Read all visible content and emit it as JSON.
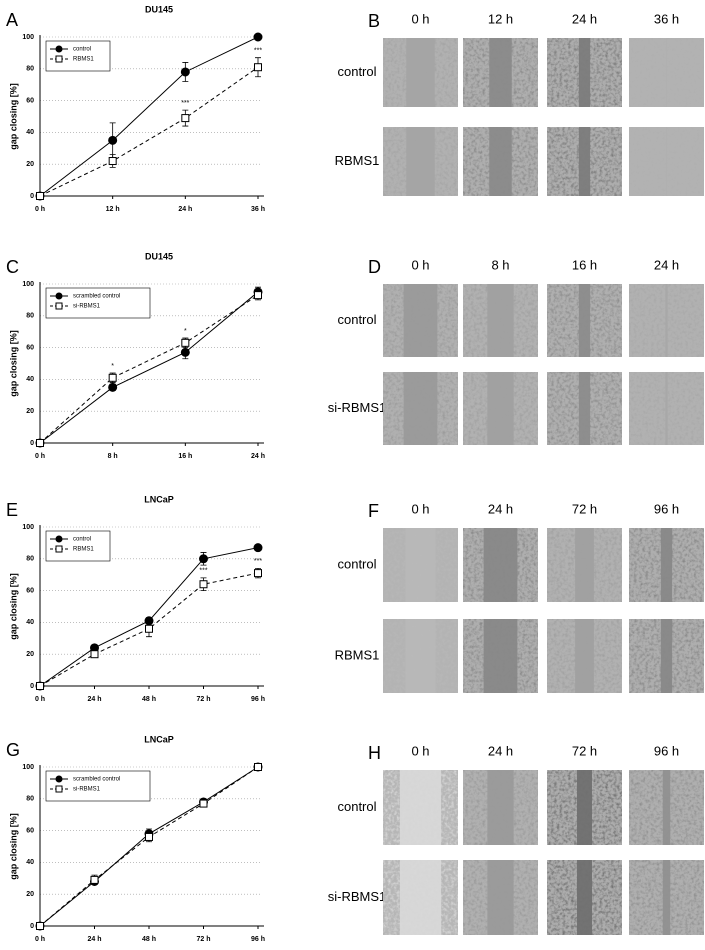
{
  "panel_letters": {
    "charts": [
      "A",
      "C",
      "E",
      "G"
    ],
    "images": [
      "B",
      "D",
      "F",
      "H"
    ]
  },
  "chart_data": [
    {
      "type": "line",
      "title": "DU145",
      "y_label": "gap closing [%]",
      "categories": [
        "0 h",
        "12 h",
        "24 h",
        "36 h"
      ],
      "ylim": [
        0,
        100
      ],
      "yticks": [
        0,
        20,
        40,
        60,
        80,
        100
      ],
      "grid": true,
      "legend": "upper left",
      "series": [
        {
          "name": "control",
          "color": "#000000",
          "marker": "circle-filled",
          "dashed": false,
          "values": [
            0,
            35,
            78,
            100
          ],
          "errors": [
            0,
            11,
            6,
            0
          ]
        },
        {
          "name": "RBMS1",
          "color": "#000000",
          "marker": "square-open",
          "dashed": true,
          "values": [
            0,
            22,
            49,
            81
          ],
          "errors": [
            0,
            4,
            5,
            6
          ],
          "significance": [
            null,
            null,
            "***",
            "***"
          ]
        }
      ]
    },
    {
      "type": "line",
      "title": "DU145",
      "y_label": "gap closing [%]",
      "categories": [
        "0 h",
        "8 h",
        "16 h",
        "24 h"
      ],
      "ylim": [
        0,
        100
      ],
      "yticks": [
        0,
        20,
        40,
        60,
        80,
        100
      ],
      "grid": true,
      "legend": "upper left",
      "series": [
        {
          "name": "scrambled control",
          "color": "#000000",
          "marker": "circle-filled",
          "dashed": false,
          "values": [
            0,
            35,
            57,
            95
          ],
          "errors": [
            0,
            2,
            4,
            3
          ]
        },
        {
          "name": "si-RBMS1",
          "color": "#000000",
          "marker": "square-open",
          "dashed": true,
          "values": [
            0,
            41,
            63,
            93
          ],
          "errors": [
            0,
            3,
            3,
            3
          ],
          "significance": [
            null,
            "*",
            "*",
            null
          ]
        }
      ]
    },
    {
      "type": "line",
      "title": "LNCaP",
      "y_label": "gap closing [%]",
      "categories": [
        "0 h",
        "24 h",
        "48 h",
        "72 h",
        "96 h"
      ],
      "ylim": [
        0,
        100
      ],
      "yticks": [
        0,
        20,
        40,
        60,
        80,
        100
      ],
      "grid": true,
      "legend": "upper left",
      "series": [
        {
          "name": "control",
          "color": "#000000",
          "marker": "circle-filled",
          "dashed": false,
          "values": [
            0,
            24,
            41,
            80,
            87
          ],
          "errors": [
            0,
            1,
            2,
            4,
            1
          ]
        },
        {
          "name": "RBMS1",
          "color": "#000000",
          "marker": "square-open",
          "dashed": true,
          "values": [
            0,
            20,
            36,
            64,
            71
          ],
          "errors": [
            0,
            1,
            5,
            4,
            3
          ],
          "significance": [
            null,
            null,
            null,
            "***",
            "***"
          ]
        }
      ]
    },
    {
      "type": "line",
      "title": "LNCaP",
      "y_label": "gap closing [%]",
      "categories": [
        "0 h",
        "24 h",
        "48 h",
        "72 h",
        "96 h"
      ],
      "ylim": [
        0,
        100
      ],
      "yticks": [
        0,
        20,
        40,
        60,
        80,
        100
      ],
      "grid": true,
      "legend": "upper left",
      "series": [
        {
          "name": "scrambled control",
          "color": "#000000",
          "marker": "circle-filled",
          "dashed": false,
          "values": [
            0,
            28,
            58,
            78,
            100
          ],
          "errors": [
            0,
            2,
            3,
            2,
            1
          ]
        },
        {
          "name": "si-RBMS1",
          "color": "#000000",
          "marker": "square-open",
          "dashed": true,
          "values": [
            0,
            29,
            56,
            77,
            100
          ],
          "errors": [
            0,
            3,
            3,
            2,
            1
          ]
        }
      ]
    }
  ],
  "image_panels": [
    {
      "time_labels": [
        "0 h",
        "12 h",
        "24 h",
        "36 h"
      ],
      "row_labels": [
        "control",
        "RBMS1"
      ]
    },
    {
      "time_labels": [
        "0 h",
        "8 h",
        "16 h",
        "24 h"
      ],
      "row_labels": [
        "control",
        "si-RBMS1"
      ]
    },
    {
      "time_labels": [
        "0 h",
        "24 h",
        "72 h",
        "96 h"
      ],
      "row_labels": [
        "control",
        "RBMS1"
      ]
    },
    {
      "time_labels": [
        "0 h",
        "24 h",
        "72 h",
        "96 h"
      ],
      "row_labels": [
        "control",
        "si-RBMS1"
      ]
    }
  ]
}
